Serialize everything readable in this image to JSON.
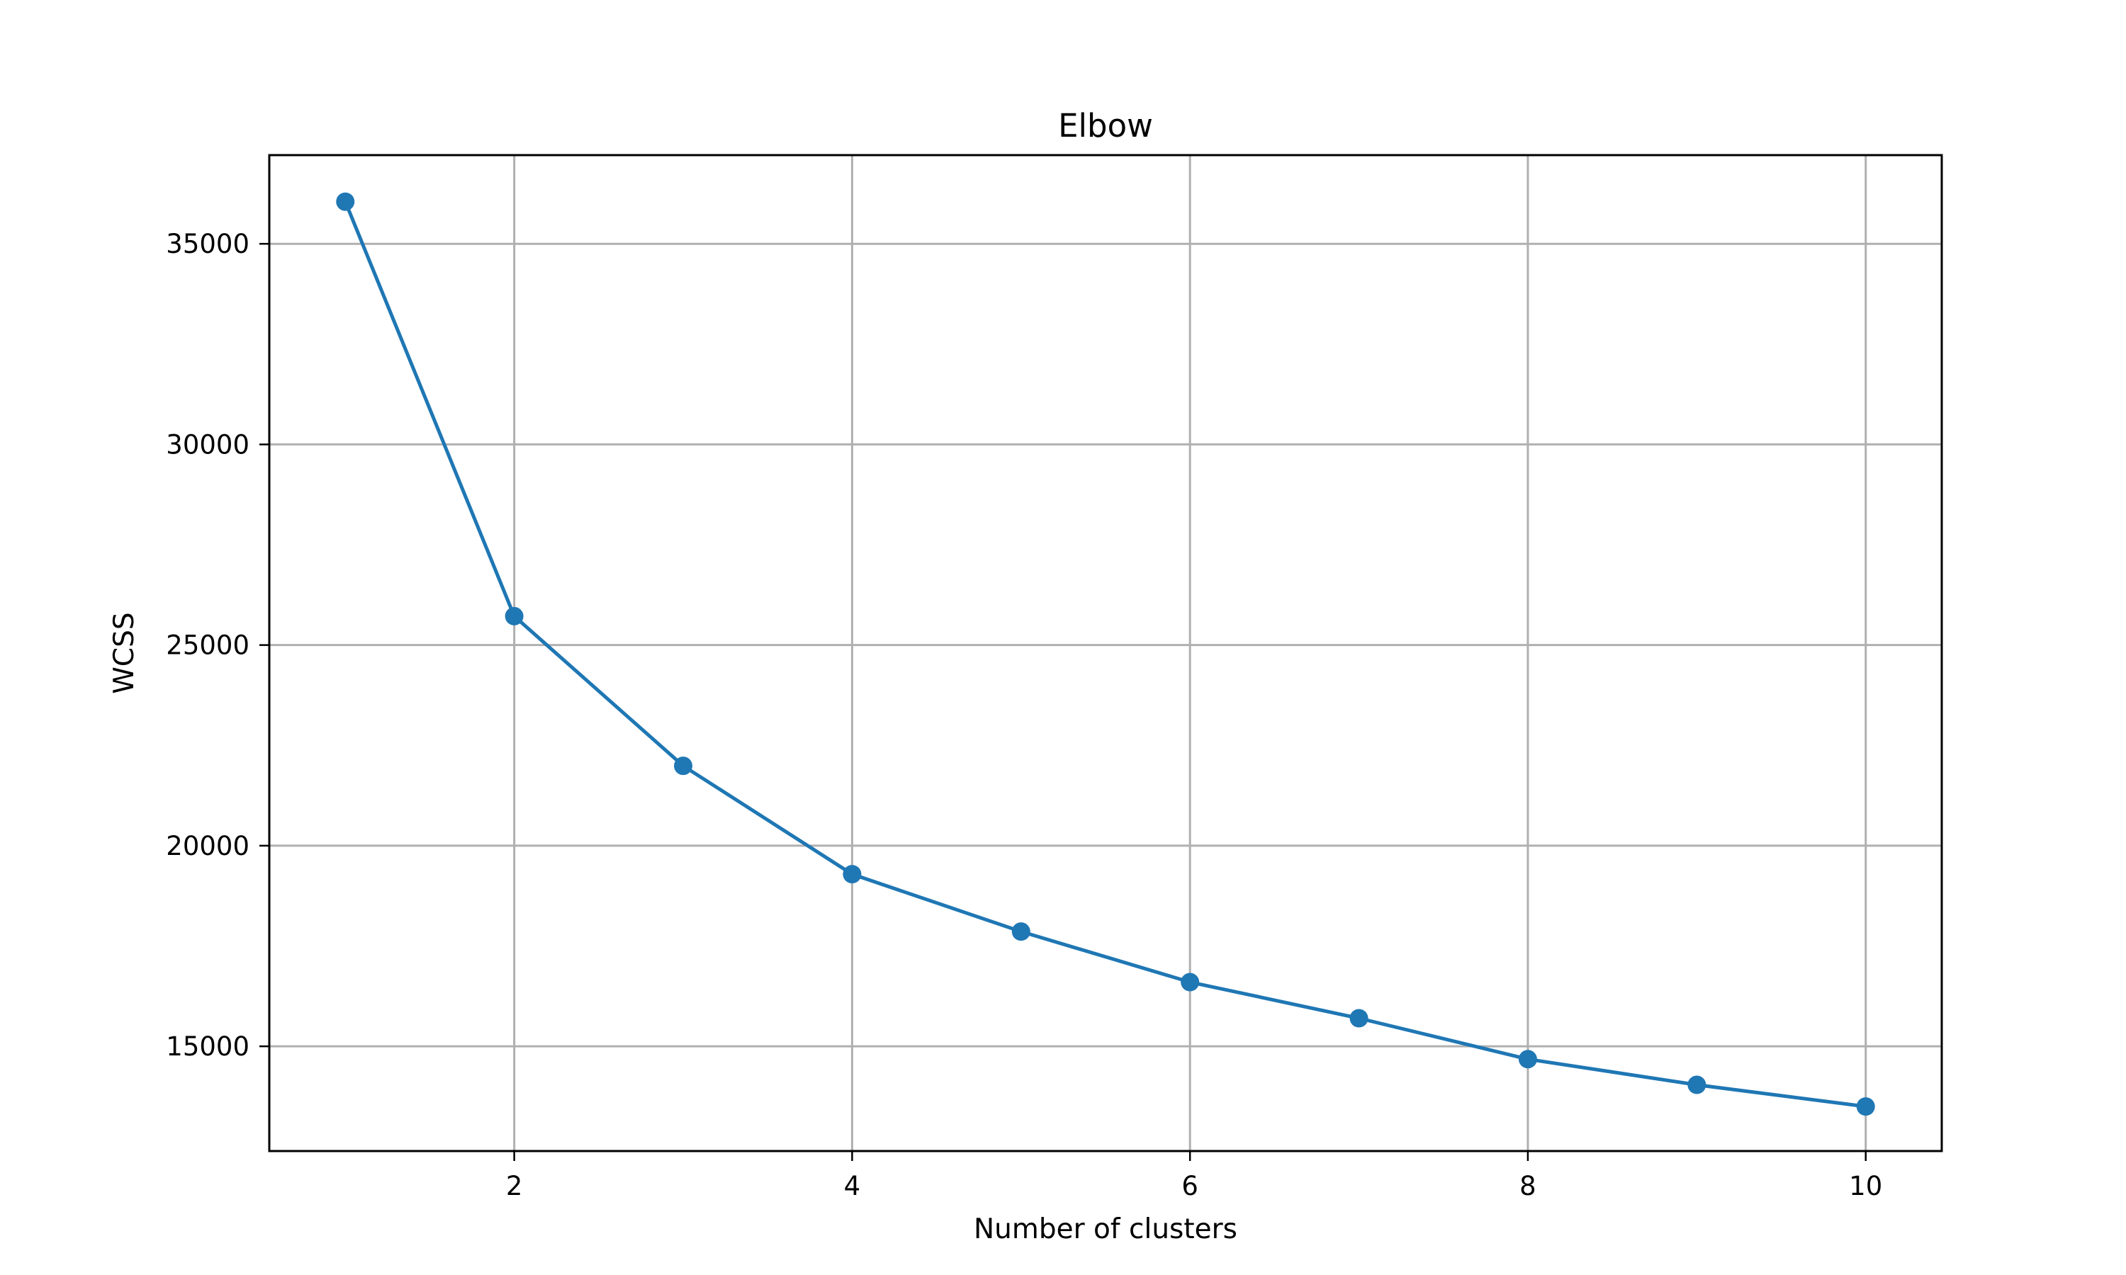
{
  "chart_data": {
    "type": "line",
    "title": "Elbow",
    "xlabel": "Number of clusters",
    "ylabel": "WCSS",
    "x": [
      1,
      2,
      3,
      4,
      5,
      6,
      7,
      8,
      9,
      10
    ],
    "series": [
      {
        "values": [
          36050,
          25720,
          21990,
          19290,
          17860,
          16600,
          15700,
          14680,
          14040,
          13500
        ],
        "color": "#1f77b4",
        "marker": "circle"
      }
    ],
    "xlim": [
      0.55,
      10.45
    ],
    "ylim": [
      12390,
      37210
    ],
    "xticks": [
      2,
      4,
      6,
      8,
      10
    ],
    "yticks": [
      15000,
      20000,
      25000,
      30000,
      35000
    ],
    "grid": true,
    "legend": "none"
  }
}
